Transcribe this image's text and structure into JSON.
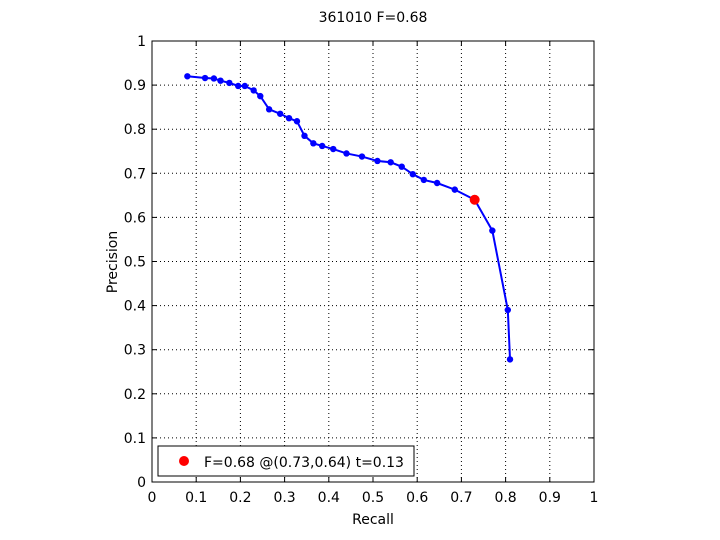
{
  "chart_data": {
    "type": "line",
    "title": "361010 F=0.68",
    "xlabel": "Recall",
    "ylabel": "Precision",
    "xlim": [
      0,
      1
    ],
    "ylim": [
      0,
      1
    ],
    "grid": true,
    "legend_position": "bottom-left",
    "x_ticks": [
      "0",
      "0.1",
      "0.2",
      "0.3",
      "0.4",
      "0.5",
      "0.6",
      "0.7",
      "0.8",
      "0.9",
      "1"
    ],
    "y_ticks": [
      "0",
      "0.1",
      "0.2",
      "0.3",
      "0.4",
      "0.5",
      "0.6",
      "0.7",
      "0.8",
      "0.9",
      "1"
    ],
    "series": [
      {
        "color": "#0000ff",
        "points": [
          [
            0.08,
            0.92
          ],
          [
            0.12,
            0.916
          ],
          [
            0.14,
            0.915
          ],
          [
            0.155,
            0.91
          ],
          [
            0.175,
            0.905
          ],
          [
            0.195,
            0.898
          ],
          [
            0.21,
            0.898
          ],
          [
            0.23,
            0.888
          ],
          [
            0.245,
            0.875
          ],
          [
            0.265,
            0.845
          ],
          [
            0.29,
            0.835
          ],
          [
            0.31,
            0.825
          ],
          [
            0.328,
            0.818
          ],
          [
            0.345,
            0.785
          ],
          [
            0.365,
            0.768
          ],
          [
            0.385,
            0.762
          ],
          [
            0.41,
            0.755
          ],
          [
            0.44,
            0.745
          ],
          [
            0.475,
            0.738
          ],
          [
            0.51,
            0.728
          ],
          [
            0.54,
            0.725
          ],
          [
            0.565,
            0.715
          ],
          [
            0.59,
            0.698
          ],
          [
            0.615,
            0.685
          ],
          [
            0.645,
            0.678
          ],
          [
            0.685,
            0.663
          ],
          [
            0.73,
            0.64
          ],
          [
            0.77,
            0.57
          ],
          [
            0.805,
            0.39
          ],
          [
            0.81,
            0.278
          ]
        ]
      }
    ],
    "best_point": {
      "x": 0.73,
      "y": 0.64,
      "color": "#ff0000"
    },
    "legend": {
      "label": "F=0.68 @(0.73,0.64) t=0.13",
      "color": "#ff0000"
    }
  }
}
